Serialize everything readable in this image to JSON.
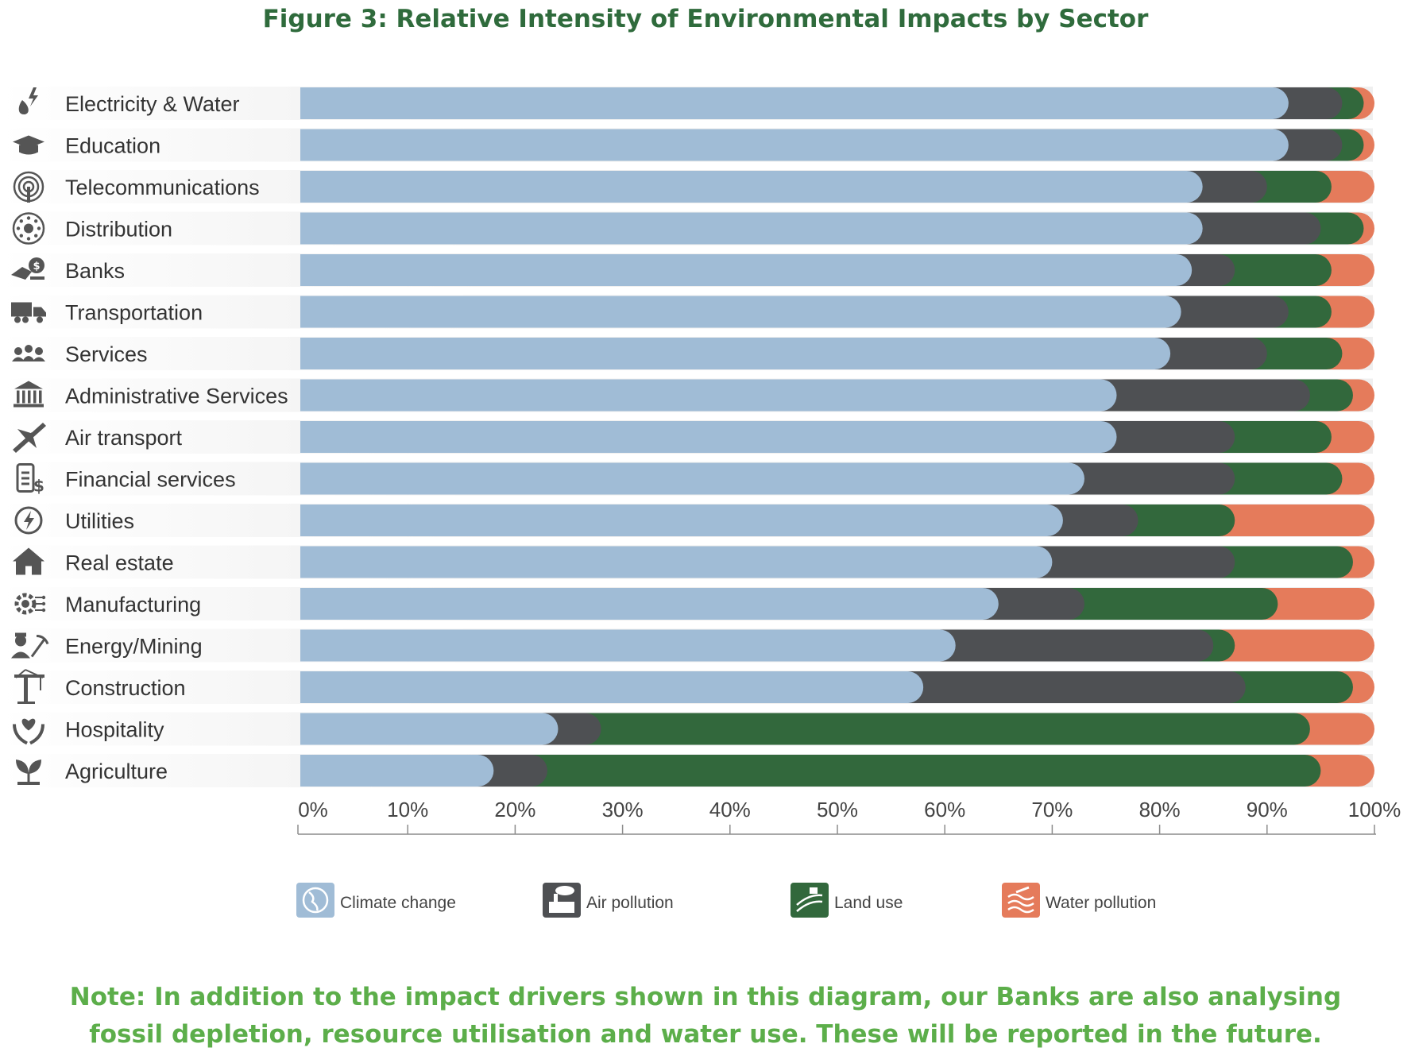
{
  "title": "Figure 3: Relative Intensity of Environmental Impacts by Sector",
  "note": {
    "line1": "Note: In addition to the impact drivers shown in this diagram, our Banks are also analysing",
    "line2": "fossil depletion, resource utilisation and water use. These will be reported in the future."
  },
  "colors": {
    "climate": "#a0bcd6",
    "air": "#4e5053",
    "land": "#32683c",
    "water": "#e57b5b",
    "label_band": "#efefef",
    "axis": "#8c8c8c",
    "icon": "#555555"
  },
  "chart_data": {
    "type": "bar",
    "orientation": "horizontal",
    "stacked": true,
    "xlim": [
      0,
      100
    ],
    "xticks": [
      "0%",
      "10%",
      "20%",
      "30%",
      "40%",
      "50%",
      "60%",
      "70%",
      "80%",
      "90%",
      "100%"
    ],
    "legend_position": "bottom",
    "categories": [
      "Electricity & Water",
      "Education",
      "Telecommunications",
      "Distribution",
      "Banks",
      "Transportation",
      "Services",
      "Administrative Services",
      "Air transport",
      "Financial services",
      "Utilities",
      "Real estate",
      "Manufacturing",
      "Energy/Mining",
      "Construction",
      "Hospitality",
      "Agriculture"
    ],
    "icons": [
      "water-bolt-icon",
      "graduation-cap-icon",
      "signal-tower-icon",
      "distribution-network-icon",
      "hand-money-icon",
      "truck-icon",
      "people-group-icon",
      "government-building-icon",
      "airplane-icon",
      "financial-document-icon",
      "power-bolt-icon",
      "house-icon",
      "gear-circuit-icon",
      "miner-pickaxe-icon",
      "crane-icon",
      "hands-heart-icon",
      "sprout-icon"
    ],
    "series": [
      {
        "name": "Climate change",
        "icon": "globe-icon",
        "values": [
          92,
          92,
          84,
          84,
          83,
          82,
          81,
          76,
          76,
          73,
          71,
          70,
          65,
          61,
          58,
          24,
          18
        ]
      },
      {
        "name": "Air pollution",
        "icon": "factory-smoke-icon",
        "values": [
          5,
          5,
          6,
          11,
          4,
          10,
          9,
          18,
          11,
          14,
          7,
          17,
          8,
          24,
          30,
          4,
          5
        ]
      },
      {
        "name": "Land use",
        "icon": "fields-icon",
        "values": [
          2,
          2,
          6,
          4,
          9,
          4,
          7,
          4,
          9,
          10,
          9,
          11,
          18,
          2,
          10,
          66,
          72
        ]
      },
      {
        "name": "Water pollution",
        "icon": "water-waves-icon",
        "values": [
          1,
          1,
          4,
          1,
          4,
          4,
          3,
          2,
          4,
          3,
          13,
          2,
          9,
          13,
          2,
          6,
          5
        ]
      }
    ]
  }
}
